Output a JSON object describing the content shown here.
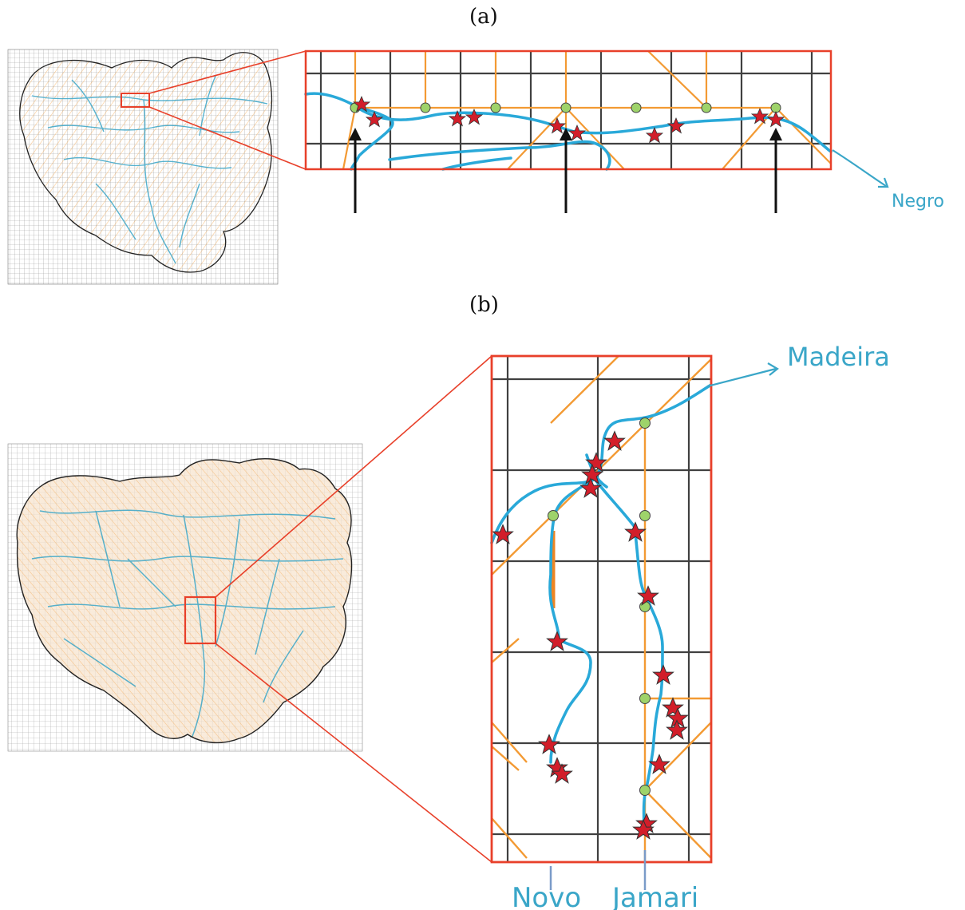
{
  "panel_a": {
    "label": "(a)",
    "river_label": "Negro"
  },
  "panel_b": {
    "label": "(b)",
    "river_label_main": "Madeira",
    "river_label_left": "Novo",
    "river_label_right": "Jamari"
  },
  "colors": {
    "river": "#29a9d9",
    "grid_river": "#f39a33",
    "box": "#e8402a",
    "grid": "#404040",
    "node": "#9ed36a",
    "star": "#d21e2a"
  },
  "icons": [
    "star-icon",
    "node-circle-icon",
    "arrow-up-icon"
  ]
}
